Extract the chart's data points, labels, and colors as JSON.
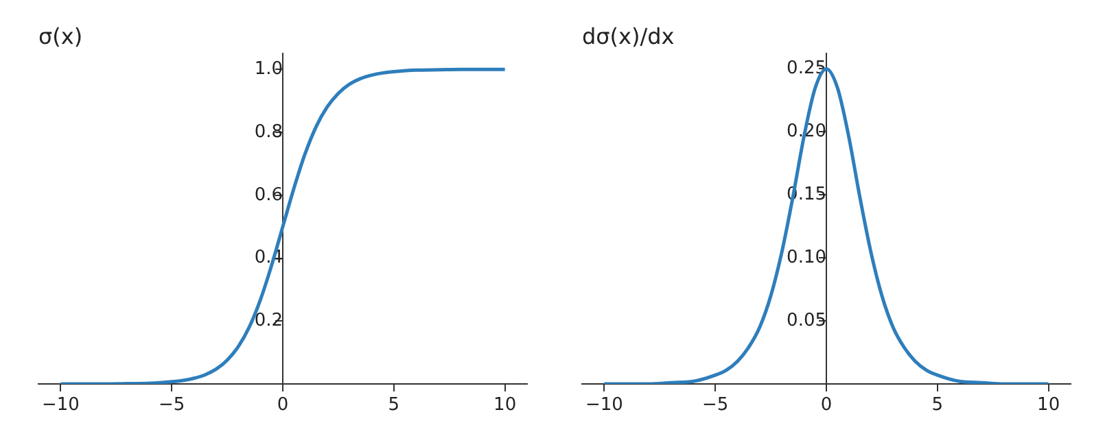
{
  "chart_data": [
    {
      "type": "line",
      "title": "σ(x)",
      "color": "#2e7ebc",
      "marker": "none",
      "grid": false,
      "x": [
        -10,
        -9,
        -8,
        -7,
        -6,
        -5,
        -4.5,
        -4,
        -3.5,
        -3,
        -2.5,
        -2,
        -1.5,
        -1,
        -0.5,
        0,
        0.5,
        1,
        1.5,
        2,
        2.5,
        3,
        3.5,
        4,
        4.5,
        5,
        6,
        7,
        8,
        9,
        10
      ],
      "values": [
        0.0,
        0.0,
        0.0,
        0.001,
        0.002,
        0.007,
        0.011,
        0.018,
        0.029,
        0.047,
        0.076,
        0.119,
        0.182,
        0.269,
        0.378,
        0.5,
        0.622,
        0.731,
        0.818,
        0.881,
        0.924,
        0.953,
        0.971,
        0.982,
        0.989,
        0.993,
        0.998,
        0.999,
        1.0,
        1.0,
        1.0
      ],
      "xlim": [
        -11,
        11
      ],
      "xticks": [
        -10,
        -5,
        0,
        5,
        10
      ],
      "ylim": [
        0,
        1.05
      ],
      "yticks": [
        0.2,
        0.4,
        0.6,
        0.8,
        {
          "value": 1,
          "label": "1.0"
        }
      ]
    },
    {
      "type": "line",
      "title": "dσ(x)/dx",
      "color": "#2e7ebc",
      "marker": "none",
      "grid": false,
      "x": [
        -10,
        -9,
        -8,
        -7,
        -6,
        -5,
        -4.5,
        -4,
        -3.5,
        -3,
        -2.5,
        -2,
        -1.5,
        -1,
        -0.5,
        0,
        0.5,
        1,
        1.5,
        2,
        2.5,
        3,
        3.5,
        4,
        4.5,
        5,
        6,
        7,
        8,
        9,
        10
      ],
      "values": [
        0.0,
        0.0,
        0.0,
        0.001,
        0.002,
        0.007,
        0.011,
        0.018,
        0.029,
        0.045,
        0.07,
        0.105,
        0.149,
        0.197,
        0.235,
        0.25,
        0.235,
        0.197,
        0.149,
        0.105,
        0.07,
        0.045,
        0.029,
        0.018,
        0.011,
        0.007,
        0.002,
        0.001,
        0.0,
        0.0,
        0.0
      ],
      "xlim": [
        -11,
        11
      ],
      "xticks": [
        -10,
        -5,
        0,
        5,
        10
      ],
      "ylim": [
        0,
        0.262
      ],
      "yticks": [
        0.05,
        {
          "value": 0.1,
          "label": "0.10"
        },
        0.15,
        {
          "value": 0.2,
          "label": "0.20"
        },
        0.25
      ]
    }
  ]
}
